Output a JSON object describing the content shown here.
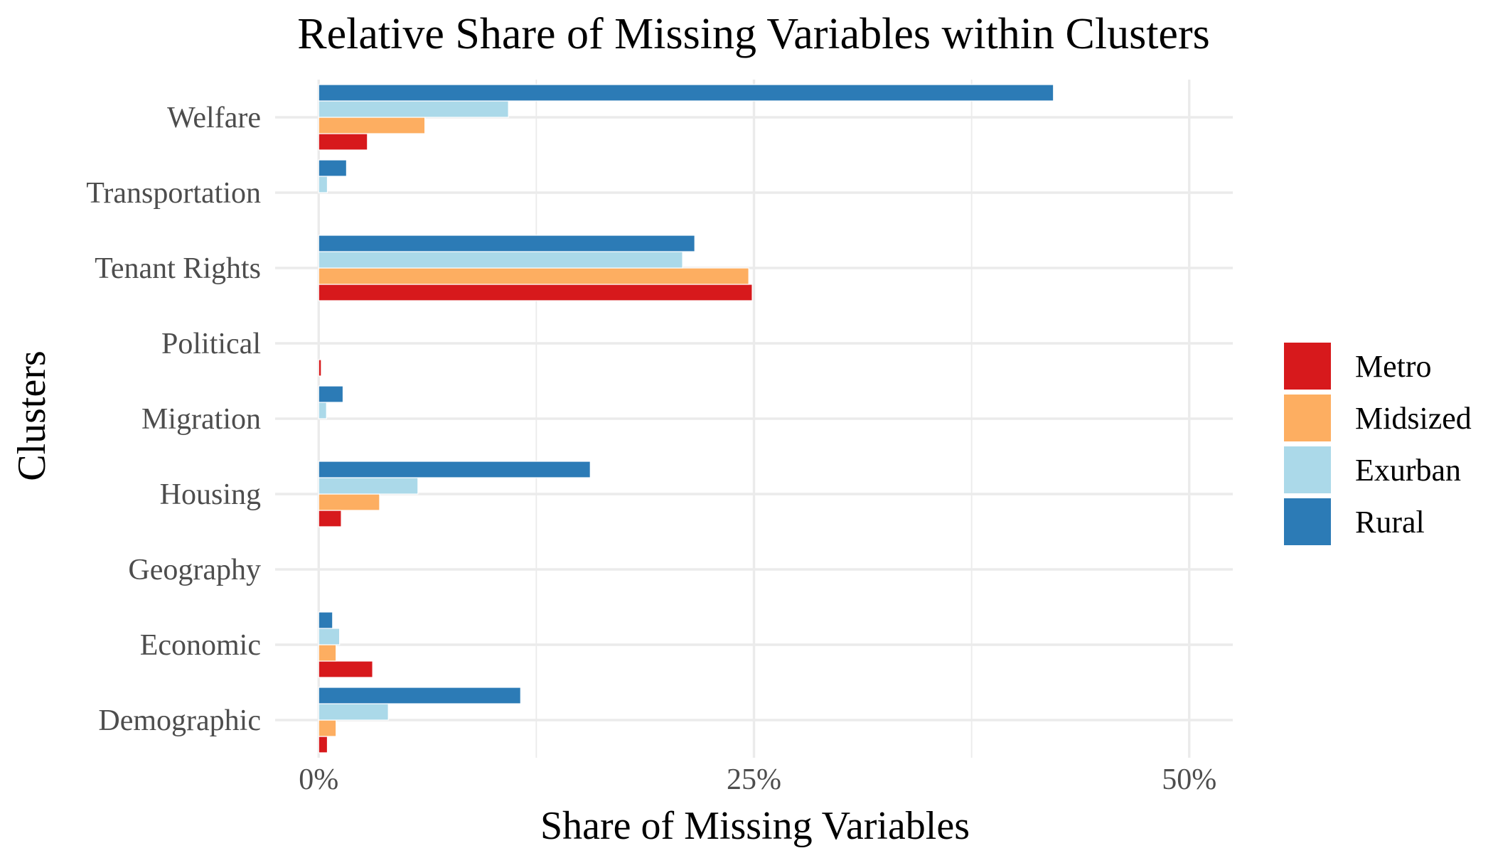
{
  "chart_data": {
    "type": "bar",
    "orientation": "horizontal",
    "title": "Relative Share of Missing Variables within Clusters",
    "xlabel": "Share of Missing Variables",
    "ylabel": "Clusters",
    "xlim": [
      -2.5,
      52.5
    ],
    "x_ticks": [
      0,
      25,
      50
    ],
    "x_tick_labels": [
      "0%",
      "25%",
      "50%"
    ],
    "x_minor_ticks": [
      12.5,
      37.5
    ],
    "categories": [
      "Welfare",
      "Transportation",
      "Tenant Rights",
      "Political",
      "Migration",
      "Housing",
      "Geography",
      "Economic",
      "Demographic"
    ],
    "series": [
      {
        "name": "Metro",
        "color": "#d7191c",
        "values": [
          2.8,
          0,
          24.9,
          0.15,
          0,
          1.3,
          0,
          3.1,
          0.5
        ]
      },
      {
        "name": "Midsized",
        "color": "#fdae61",
        "values": [
          6.1,
          0,
          24.7,
          0,
          0,
          3.5,
          0,
          1.0,
          1.0
        ]
      },
      {
        "name": "Exurban",
        "color": "#abd9e9",
        "values": [
          10.9,
          0.5,
          20.9,
          0,
          0.45,
          5.7,
          0,
          1.2,
          4.0
        ]
      },
      {
        "name": "Rural",
        "color": "#2c7bb6",
        "values": [
          42.2,
          1.6,
          21.6,
          0,
          1.4,
          15.6,
          0,
          0.8,
          11.6
        ]
      }
    ],
    "grid": true,
    "legend": {
      "position": "right",
      "order": [
        "Metro",
        "Midsized",
        "Exurban",
        "Rural"
      ]
    }
  }
}
